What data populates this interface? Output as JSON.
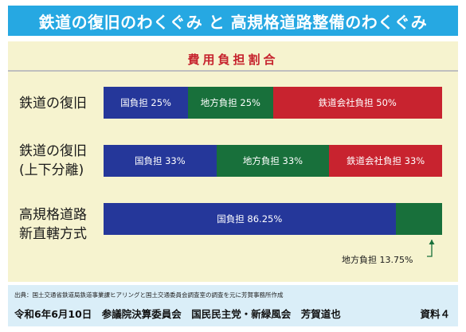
{
  "page": {
    "title": "鉄道の復旧のわくぐみ と 高規格道路整備のわくぐみ"
  },
  "colors": {
    "title_bar": "#26a8e2",
    "panel_bg": "#f6f3cf",
    "chart_title": "#c6242e",
    "national": "#25379a",
    "local": "#18703b",
    "railway": "#c8232f",
    "footer_bg": "#daeef8"
  },
  "chart_data": {
    "type": "bar",
    "orientation": "horizontal",
    "stacked": true,
    "title": "費用負担割合",
    "categories": [
      [
        "鉄道の復旧"
      ],
      [
        "鉄道の復旧",
        "(上下分離)"
      ],
      [
        "高規格道路",
        "新直轄方式"
      ]
    ],
    "rows": [
      {
        "segments": [
          {
            "name": "国負担",
            "value": 25,
            "label": "国負担 25%",
            "color": "#25379a"
          },
          {
            "name": "地方負担",
            "value": 25,
            "label": "地方負担 25%",
            "color": "#18703b"
          },
          {
            "name": "鉄道会社負担",
            "value": 50,
            "label": "鉄道会社負担 50%",
            "color": "#c8232f"
          }
        ]
      },
      {
        "segments": [
          {
            "name": "国負担",
            "value": 33.33,
            "label": "国負担 33%",
            "color": "#25379a"
          },
          {
            "name": "地方負担",
            "value": 33.33,
            "label": "地方負担 33%",
            "color": "#18703b"
          },
          {
            "name": "鉄道会社負担",
            "value": 33.33,
            "label": "鉄道会社負担 33%",
            "color": "#c8232f"
          }
        ]
      },
      {
        "segments": [
          {
            "name": "国負担",
            "value": 86.25,
            "label": "国負担 86.25%",
            "color": "#25379a"
          },
          {
            "name": "地方負担",
            "value": 13.75,
            "label": "",
            "color": "#18703b"
          }
        ]
      }
    ],
    "annotations": [
      {
        "text": "地方負担 13.75%",
        "row": 2,
        "segment": 1
      }
    ],
    "xlim": [
      0,
      100
    ]
  },
  "footer": {
    "source": "出典：国土交通省鉄道局鉄道事業課ヒアリングと国土交通委員会調査室の調査を元に芳賀事務所作成",
    "info": "令和6年6月10日　参議院決算委員会　国民民主党・新緑風会　芳賀道也",
    "doc_label": "資料４"
  }
}
